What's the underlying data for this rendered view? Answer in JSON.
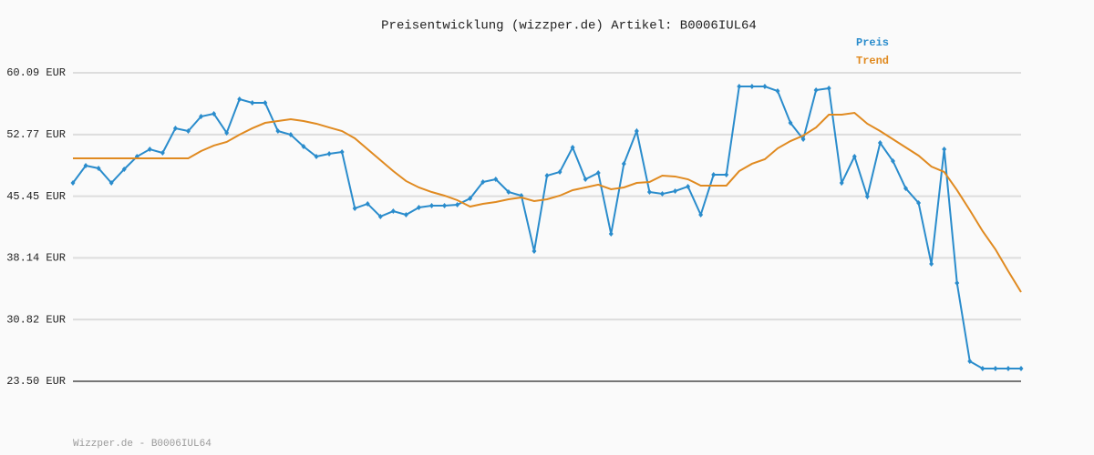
{
  "chart_data": {
    "type": "line",
    "title": "Preisentwicklung (wizzper.de) Artikel: B0006IUL64",
    "footer": "Wizzper.de - B0006IUL64",
    "ylim": [
      23.5,
      60.09
    ],
    "yticks": [
      {
        "value": 23.5,
        "label": "23.50 EUR"
      },
      {
        "value": 30.82,
        "label": "30.82 EUR"
      },
      {
        "value": 38.14,
        "label": "38.14 EUR"
      },
      {
        "value": 45.45,
        "label": "45.45 EUR"
      },
      {
        "value": 52.77,
        "label": "52.77 EUR"
      },
      {
        "value": 60.09,
        "label": "60.09 EUR"
      }
    ],
    "grid": true,
    "legend": "top-right",
    "series": [
      {
        "name": "Preis",
        "color": "#2a8ccc",
        "markers": true,
        "values": [
          47.03,
          49.08,
          48.76,
          47.03,
          48.65,
          50.16,
          51.02,
          50.59,
          53.51,
          53.18,
          54.91,
          55.23,
          52.97,
          56.96,
          56.53,
          56.53,
          53.18,
          52.75,
          51.35,
          50.16,
          50.48,
          50.7,
          44.01,
          44.55,
          43.04,
          43.68,
          43.25,
          44.12,
          44.33,
          44.33,
          44.44,
          45.19,
          47.14,
          47.46,
          45.95,
          45.52,
          38.93,
          47.89,
          48.33,
          51.24,
          47.46,
          48.22,
          40.98,
          49.3,
          53.18,
          45.95,
          45.73,
          46.06,
          46.6,
          43.25,
          48.0,
          48.0,
          58.47,
          58.47,
          58.47,
          57.93,
          54.15,
          52.21,
          58.04,
          58.26,
          47.03,
          50.16,
          45.41,
          51.78,
          49.62,
          46.38,
          44.66,
          37.42,
          51.02,
          35.16,
          25.87,
          25.01,
          25.01,
          25.01,
          25.01
        ]
      },
      {
        "name": "Trend",
        "color": "#e08a20",
        "markers": false,
        "values": [
          49.94,
          49.94,
          49.94,
          49.94,
          49.94,
          49.94,
          49.94,
          49.94,
          49.94,
          49.94,
          50.81,
          51.46,
          51.89,
          52.75,
          53.51,
          54.15,
          54.37,
          54.59,
          54.37,
          54.05,
          53.61,
          53.18,
          52.32,
          51.02,
          49.73,
          48.43,
          47.25,
          46.49,
          45.95,
          45.52,
          44.98,
          44.22,
          44.55,
          44.76,
          45.09,
          45.3,
          44.87,
          45.09,
          45.52,
          46.17,
          46.49,
          46.82,
          46.28,
          46.49,
          47.03,
          47.14,
          47.89,
          47.79,
          47.46,
          46.71,
          46.71,
          46.71,
          48.43,
          49.3,
          49.84,
          51.13,
          51.99,
          52.64,
          53.61,
          55.12,
          55.12,
          55.34,
          54.05,
          53.18,
          52.21,
          51.24,
          50.27,
          48.97,
          48.33,
          46.17,
          43.79,
          41.31,
          39.15,
          36.56,
          34.08
        ]
      }
    ]
  }
}
